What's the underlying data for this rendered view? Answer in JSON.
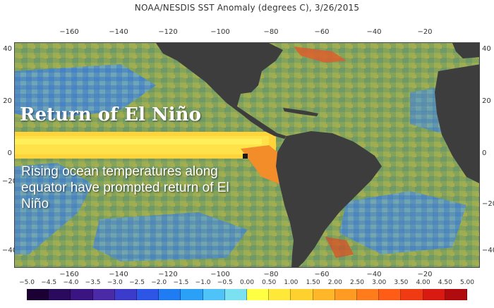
{
  "title": "NOAA/NESDIS SST Anomaly (degrees C), 3/26/2015",
  "overlay": {
    "heading": "Return of El Niño",
    "body": "Rising ocean temperatures along equator have prompted return of El Niño"
  },
  "axes": {
    "lon_labels": [
      "−160",
      "−140",
      "−120",
      "−100",
      "−80",
      "−60",
      "−40",
      "−20"
    ],
    "lat_labels": [
      "40",
      "20",
      "0",
      "−20",
      "−40"
    ]
  },
  "legend": {
    "labels": [
      "−5.0",
      "−4.5",
      "−4.0",
      "−3.5",
      "−3.0",
      "−2.5",
      "−2.0",
      "−1.5",
      "−1.0",
      "−0.5",
      "0.00",
      "0.50",
      "1.00",
      "1.50",
      "2.00",
      "2.50",
      "3.00",
      "3.50",
      "4.00",
      "4.50",
      "5.00"
    ],
    "colors": [
      "#1a0033",
      "#2a0a5c",
      "#3a1480",
      "#4a2aa6",
      "#3c3ccc",
      "#2d55e6",
      "#1f7cf2",
      "#2aa0f7",
      "#4fc3f7",
      "#7be0f0",
      "#ffff44",
      "#ffe838",
      "#ffd12f",
      "#ffb628",
      "#ff9a22",
      "#ff7c1c",
      "#ff5c18",
      "#f03a14",
      "#d81a12",
      "#b00c10"
    ]
  },
  "colors": {
    "land": "#3d3d3d",
    "ocean_base": "#7fa45a",
    "warm": "#f2a93a",
    "hot": "#ffd83a",
    "cool": "#3f86d8"
  }
}
